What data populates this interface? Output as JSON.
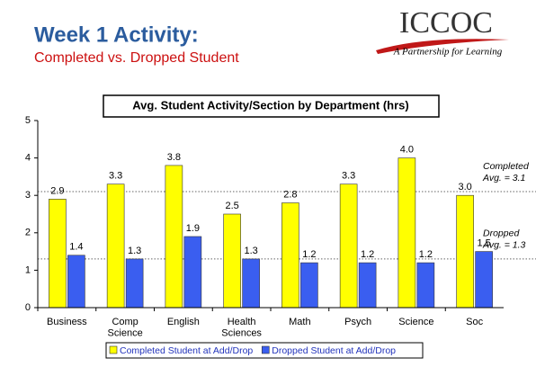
{
  "header": {
    "title": "Week 1 Activity:",
    "subtitle": "Completed vs. Dropped Student",
    "logo": "ICCOC",
    "tagline": "A Partnership for Learning"
  },
  "chart_data": {
    "type": "bar",
    "title": "Avg. Student Activity/Section by Department (hrs)",
    "categories": [
      "Business",
      "Comp\nScience",
      "English",
      "Health\nSciences",
      "Math",
      "Psych",
      "Science",
      "Soc"
    ],
    "series": [
      {
        "name": "Completed Student at Add/Drop",
        "color": "#ffff00",
        "values": [
          2.9,
          3.3,
          3.8,
          2.5,
          2.8,
          3.3,
          4.0,
          3.0
        ],
        "value_labels": [
          "2.9",
          "3.3",
          "3.8",
          "2.5",
          "2.8",
          "3.3",
          "4.0",
          "3.0"
        ]
      },
      {
        "name": "Dropped Student at Add/Drop",
        "color": "#3a5ef0",
        "values": [
          1.4,
          1.3,
          1.9,
          1.3,
          1.2,
          1.2,
          1.2,
          1.5
        ],
        "value_labels": [
          "1.4",
          "1.3",
          "1.9",
          "1.3",
          "1.2",
          "1.2",
          "1.2",
          "1.5"
        ]
      }
    ],
    "ylim": [
      0,
      5
    ],
    "yticks": [
      0,
      1,
      2,
      3,
      4,
      5
    ],
    "grid": false,
    "legend": "bottom",
    "reference_lines": [
      {
        "value": 3.1,
        "label_lines": [
          "Completed",
          "Avg. = 3.1"
        ]
      },
      {
        "value": 1.3,
        "label_lines": [
          "Dropped",
          "Avg. = 1.3"
        ]
      }
    ]
  }
}
